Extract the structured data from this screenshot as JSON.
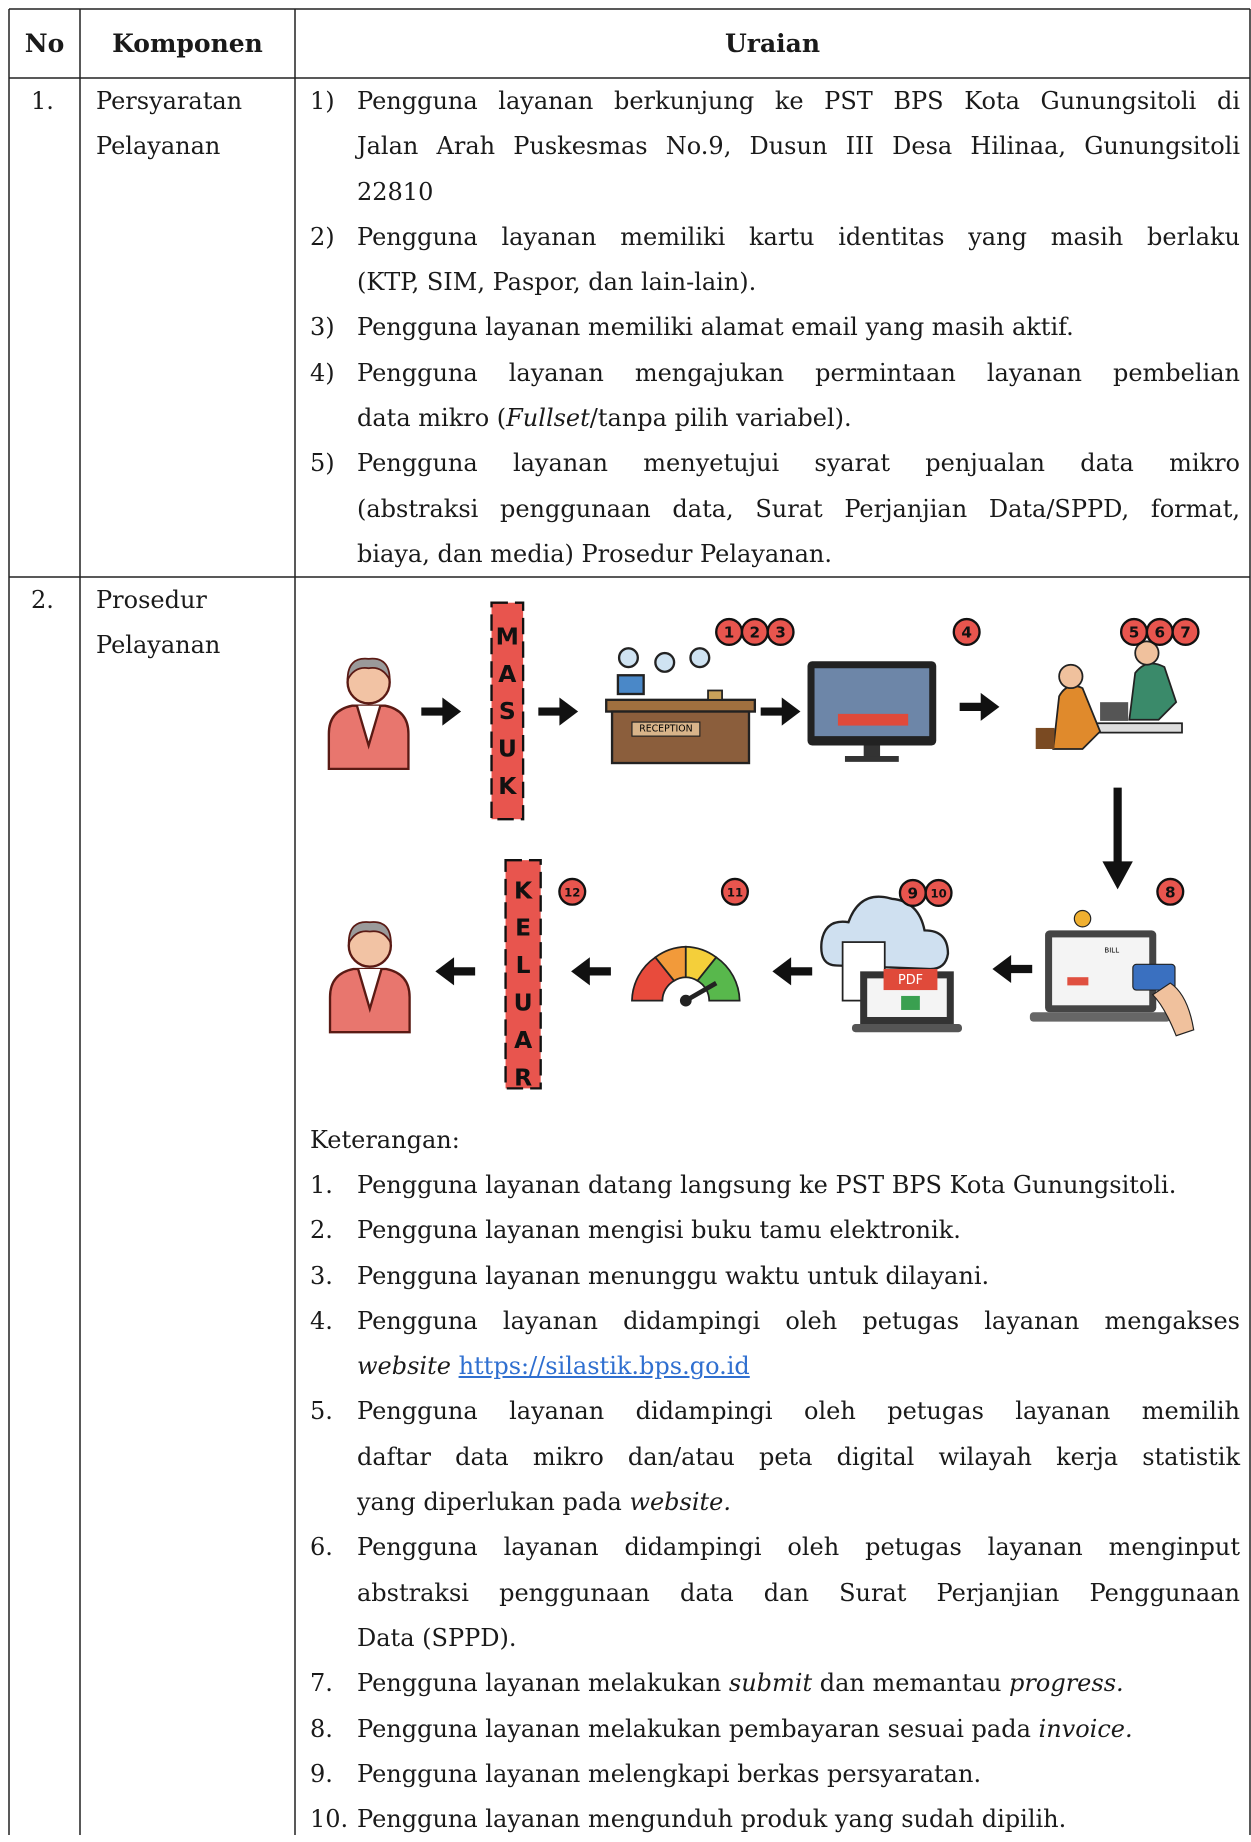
{
  "table": {
    "header": [
      "No",
      "Komponen",
      "Uraian"
    ],
    "rows": [
      {
        "no": "1.",
        "komponen": [
          "Persyaratan",
          "Pelayanan"
        ],
        "uraian": [
          {
            "number": "1)",
            "lines": [
              [
                "Pengguna layanan berkunjung ke PST BPS Kota Gunungsitoli di"
              ],
              [
                "Jalan Arah Puskesmas No.9, Dusun III Desa Hilinaa, Gunungsitoli"
              ],
              [
                "22810"
              ]
            ]
          },
          {
            "number": "2)",
            "lines": [
              [
                "Pengguna layanan memiliki kartu identitas yang masih berlaku"
              ],
              [
                "(KTP, SIM, Paspor, dan lain-lain)."
              ]
            ]
          },
          {
            "number": "3)",
            "lines": [
              [
                "Pengguna layanan memiliki alamat email yang masih aktif."
              ]
            ]
          },
          {
            "number": "4)",
            "lines": [
              [
                "Pengguna layanan mengajukan permintaan layanan pembelian"
              ],
              [
                "data mikro (",
                {
                  "text": "Fullset",
                  "style": "italic"
                },
                "/tanpa pilih variabel)."
              ]
            ]
          },
          {
            "number": "5)",
            "lines": [
              [
                "Pengguna layanan menyetujui syarat penjualan data mikro"
              ],
              [
                "(abstraksi penggunaan data, Surat Perjanjian Data/SPPD, format,"
              ],
              [
                "biaya, dan media) Prosedur Pelayanan."
              ]
            ]
          }
        ]
      },
      {
        "no": "2.",
        "komponen": [
          "Prosedur",
          "Pelayanan"
        ],
        "flow": {
          "masuk": [
            "M",
            "A",
            "S",
            "U",
            "K"
          ],
          "keluar": [
            "K",
            "E",
            "L",
            "U",
            "A",
            "R"
          ],
          "badges": [
            [
              "1",
              "2",
              "3"
            ],
            [
              "4"
            ],
            [
              "5",
              "6",
              "7"
            ],
            [
              "8"
            ],
            [
              "9",
              "10"
            ],
            [
              "11"
            ],
            [
              "12"
            ]
          ],
          "reception_sign": "RECEPTION",
          "bill_label": "BILL",
          "pdf_label": "PDF"
        },
        "keterangan_title": "Keterangan:",
        "keterangan": [
          {
            "number": "1.",
            "lines": [
              [
                "Pengguna layanan datang langsung ke PST BPS Kota Gunungsitoli."
              ]
            ]
          },
          {
            "number": "2.",
            "lines": [
              [
                "Pengguna layanan mengisi buku tamu elektronik."
              ]
            ]
          },
          {
            "number": "3.",
            "lines": [
              [
                "Pengguna layanan menunggu waktu untuk dilayani."
              ]
            ]
          },
          {
            "number": "4.",
            "lines": [
              [
                "Pengguna layanan didampingi oleh petugas layanan mengakses"
              ],
              [
                {
                  "text": "website ",
                  "style": "italic"
                },
                {
                  "text": "https://silastik.bps.go.id",
                  "style": "link"
                }
              ]
            ]
          },
          {
            "number": "5.",
            "lines": [
              [
                "Pengguna layanan didampingi oleh petugas layanan memilih"
              ],
              [
                "daftar data mikro dan/atau peta digital wilayah kerja statistik"
              ],
              [
                "yang diperlukan pada ",
                {
                  "text": "website.",
                  "style": "italic"
                }
              ]
            ]
          },
          {
            "number": "6.",
            "lines": [
              [
                "Pengguna layanan didampingi oleh petugas layanan menginput"
              ],
              [
                "abstraksi penggunaan data dan Surat Perjanjian Penggunaan"
              ],
              [
                "Data (SPPD)."
              ]
            ]
          },
          {
            "number": "7.",
            "lines": [
              [
                "Pengguna layanan melakukan ",
                {
                  "text": "submit",
                  "style": "italic"
                },
                " dan memantau ",
                {
                  "text": "progress.",
                  "style": "italic"
                }
              ]
            ]
          },
          {
            "number": "8.",
            "lines": [
              [
                "Pengguna layanan melakukan pembayaran sesuai pada ",
                {
                  "text": "invoice.",
                  "style": "italic"
                }
              ]
            ]
          },
          {
            "number": "9.",
            "lines": [
              [
                "Pengguna layanan melengkapi berkas persyaratan."
              ]
            ]
          },
          {
            "number": "10.",
            "lines": [
              [
                "Pengguna layanan mengunduh produk yang sudah dipilih."
              ]
            ]
          }
        ]
      }
    ]
  }
}
